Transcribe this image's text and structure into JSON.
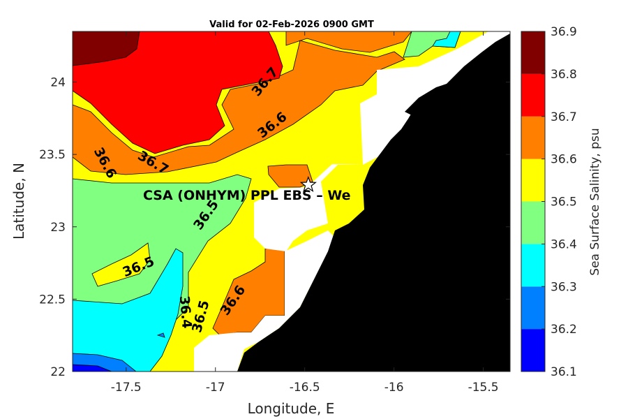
{
  "title": "Valid for 02-Feb-2026 0900 GMT",
  "map": {
    "xlabel": "Longitude, E",
    "ylabel": "Latitude, N",
    "xlim": [
      -17.8,
      -15.35
    ],
    "ylim": [
      22.0,
      24.35
    ],
    "xticks": [
      -17.5,
      -17,
      -16.5,
      -16,
      -15.5
    ],
    "xtick_labels": [
      "-17.5",
      "-17",
      "-16.5",
      "-16",
      "-15.5"
    ],
    "yticks": [
      22,
      22.5,
      23,
      23.5,
      24
    ],
    "ytick_labels": [
      "22",
      "22.5",
      "23",
      "23.5",
      "24"
    ],
    "station_label": "CSA (ONHYM) PPL EBS  – We",
    "station_marker": {
      "lon": -16.48,
      "lat": 23.29,
      "symbol": "star"
    },
    "land_color": "#000000",
    "no_data_color": "#ffffff"
  },
  "colorbar": {
    "label": "Sea Surface Salinity, psu",
    "levels": [
      36.1,
      36.2,
      36.3,
      36.4,
      36.5,
      36.6,
      36.7,
      36.8,
      36.9
    ],
    "tick_labels": [
      "36.1",
      "36.2",
      "36.3",
      "36.4",
      "36.5",
      "36.6",
      "36.7",
      "36.8",
      "36.9"
    ],
    "colors": [
      "#0000ff",
      "#0080ff",
      "#00ffff",
      "#80ff80",
      "#ffff00",
      "#ff8000",
      "#ff0000",
      "#800000"
    ]
  },
  "chart_data": {
    "type": "contour",
    "quantity": "Sea Surface Salinity, psu",
    "contour_labels": [
      {
        "text": "36.7",
        "lon": -16.72,
        "lat": 24.0,
        "angle": -50
      },
      {
        "text": "36.6",
        "lon": -16.68,
        "lat": 23.7,
        "angle": -38
      },
      {
        "text": "36.6",
        "lon": -17.62,
        "lat": 23.44,
        "angle": 62
      },
      {
        "text": "36.7",
        "lon": -17.35,
        "lat": 23.44,
        "angle": 30
      },
      {
        "text": "36.5",
        "lon": -17.05,
        "lat": 23.08,
        "angle": -55
      },
      {
        "text": "36.5",
        "lon": -17.43,
        "lat": 22.72,
        "angle": -22
      },
      {
        "text": "36.4",
        "lon": -17.17,
        "lat": 22.41,
        "angle": 85
      },
      {
        "text": "36.5",
        "lon": -17.08,
        "lat": 22.38,
        "angle": -75
      },
      {
        "text": "36.6",
        "lon": -16.9,
        "lat": 22.49,
        "angle": -55
      }
    ]
  }
}
